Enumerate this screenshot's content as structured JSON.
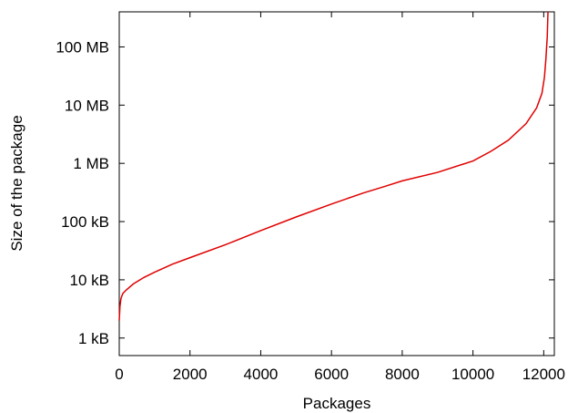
{
  "chart_data": {
    "type": "line",
    "title": "",
    "xlabel": "Packages",
    "ylabel": "Size of the package",
    "xlim": [
      0,
      12300
    ],
    "ylim_bytes": [
      500,
      400000000
    ],
    "y_scale": "log",
    "grid": false,
    "legend": "none",
    "x_ticks": [
      {
        "value": 0,
        "label": "0"
      },
      {
        "value": 2000,
        "label": "2000"
      },
      {
        "value": 4000,
        "label": "4000"
      },
      {
        "value": 6000,
        "label": "6000"
      },
      {
        "value": 8000,
        "label": "8000"
      },
      {
        "value": 10000,
        "label": "10000"
      },
      {
        "value": 12000,
        "label": "12000"
      }
    ],
    "y_ticks": [
      {
        "value": 1000,
        "label": "1 kB"
      },
      {
        "value": 10000,
        "label": "10 kB"
      },
      {
        "value": 100000,
        "label": "100 kB"
      },
      {
        "value": 1000000,
        "label": "1 MB"
      },
      {
        "value": 10000000,
        "label": "10 MB"
      },
      {
        "value": 100000000,
        "label": "100 MB"
      }
    ],
    "series": [
      {
        "color": "#e00000",
        "x": [
          0,
          20,
          50,
          100,
          200,
          400,
          700,
          1000,
          1500,
          2000,
          3000,
          4000,
          5000,
          6000,
          6900,
          7500,
          8000,
          9000,
          10000,
          10500,
          11000,
          11500,
          11800,
          11950,
          12020,
          12060,
          12100,
          12120
        ],
        "y": [
          2000,
          3500,
          4800,
          5800,
          6700,
          8500,
          11000,
          13500,
          18500,
          24000,
          40000,
          70000,
          120000,
          200000,
          310000,
          400000,
          500000,
          700000,
          1100000,
          1600000,
          2500000,
          4800000,
          9000000,
          16000000,
          30000000,
          60000000,
          150000000,
          400000000
        ]
      }
    ]
  }
}
